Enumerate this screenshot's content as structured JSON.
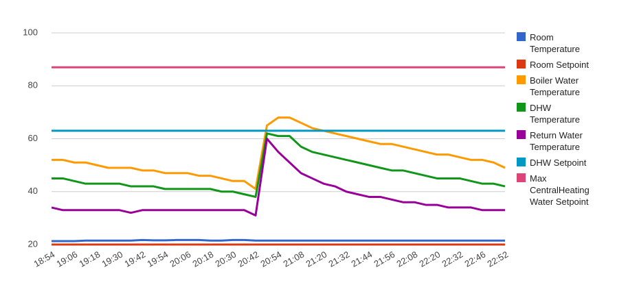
{
  "chart_data": {
    "type": "line",
    "categories": [
      "18:54",
      null,
      "19:06",
      null,
      "19:18",
      null,
      "19:30",
      null,
      "19:42",
      null,
      "19:54",
      null,
      "20:06",
      null,
      "20:18",
      null,
      "20:30",
      null,
      "20:42",
      null,
      "20:54",
      null,
      "21:08",
      null,
      "21:20",
      null,
      "21:32",
      null,
      "21:44",
      null,
      "21:56",
      null,
      "22:08",
      null,
      "22:20",
      null,
      "22:32",
      null,
      "22:46",
      null,
      "22:52"
    ],
    "ylim": [
      20,
      100
    ],
    "yticks": [
      20,
      40,
      60,
      80,
      100
    ],
    "grid": true,
    "legend": "right",
    "series": [
      {
        "name": "Room Temperature",
        "color": "#3366cc",
        "values": [
          21.3,
          21.3,
          21.3,
          21.5,
          21.5,
          21.5,
          21.5,
          21.5,
          21.7,
          21.6,
          21.6,
          21.7,
          21.7,
          21.7,
          21.5,
          21.5,
          21.7,
          21.7,
          21.5,
          21.5,
          21.5,
          21.5,
          21.5,
          21.5,
          21.5,
          21.5,
          21.5,
          21.5,
          21.5,
          21.5,
          21.5,
          21.5,
          21.5,
          21.5,
          21.5,
          21.5,
          21.5,
          21.5,
          21.5,
          21.5,
          21.5
        ]
      },
      {
        "name": "Room Setpoint",
        "color": "#dc3912",
        "values": [
          20,
          20,
          20,
          20,
          20,
          20,
          20,
          20,
          20,
          20,
          20,
          20,
          20,
          20,
          20,
          20,
          20,
          20,
          20,
          20,
          20,
          20,
          20,
          20,
          20,
          20,
          20,
          20,
          20,
          20,
          20,
          20,
          20,
          20,
          20,
          20,
          20,
          20,
          20,
          20,
          20
        ]
      },
      {
        "name": "Boiler Water Temperature",
        "color": "#ff9900",
        "values": [
          52,
          52,
          51,
          51,
          50,
          49,
          49,
          49,
          48,
          48,
          47,
          47,
          47,
          46,
          46,
          45,
          44,
          44,
          41,
          65,
          68,
          68,
          66,
          64,
          63,
          62,
          61,
          60,
          59,
          58,
          58,
          57,
          56,
          55,
          54,
          54,
          53,
          52,
          52,
          51,
          49
        ]
      },
      {
        "name": "DHW Temperature",
        "color": "#109618",
        "values": [
          45,
          45,
          44,
          43,
          43,
          43,
          43,
          42,
          42,
          42,
          41,
          41,
          41,
          41,
          41,
          40,
          40,
          39,
          38,
          62,
          61,
          61,
          57,
          55,
          54,
          53,
          52,
          51,
          50,
          49,
          48,
          48,
          47,
          46,
          45,
          45,
          45,
          44,
          43,
          43,
          42
        ]
      },
      {
        "name": "Return Water Temperature",
        "color": "#990099",
        "values": [
          34,
          33,
          33,
          33,
          33,
          33,
          33,
          32,
          33,
          33,
          33,
          33,
          33,
          33,
          33,
          33,
          33,
          33,
          31,
          60,
          55,
          51,
          47,
          45,
          43,
          42,
          40,
          39,
          38,
          38,
          37,
          36,
          36,
          35,
          35,
          34,
          34,
          34,
          33,
          33,
          33
        ]
      },
      {
        "name": "DHW Setpoint",
        "color": "#0099c6",
        "values": [
          63,
          63,
          63,
          63,
          63,
          63,
          63,
          63,
          63,
          63,
          63,
          63,
          63,
          63,
          63,
          63,
          63,
          63,
          63,
          63,
          63,
          63,
          63,
          63,
          63,
          63,
          63,
          63,
          63,
          63,
          63,
          63,
          63,
          63,
          63,
          63,
          63,
          63,
          63,
          63,
          63
        ]
      },
      {
        "name": "Max CentralHeating Water Setpoint",
        "color": "#dd4477",
        "values": [
          87,
          87,
          87,
          87,
          87,
          87,
          87,
          87,
          87,
          87,
          87,
          87,
          87,
          87,
          87,
          87,
          87,
          87,
          87,
          87,
          87,
          87,
          87,
          87,
          87,
          87,
          87,
          87,
          87,
          87,
          87,
          87,
          87,
          87,
          87,
          87,
          87,
          87,
          87,
          87,
          87
        ]
      }
    ]
  }
}
